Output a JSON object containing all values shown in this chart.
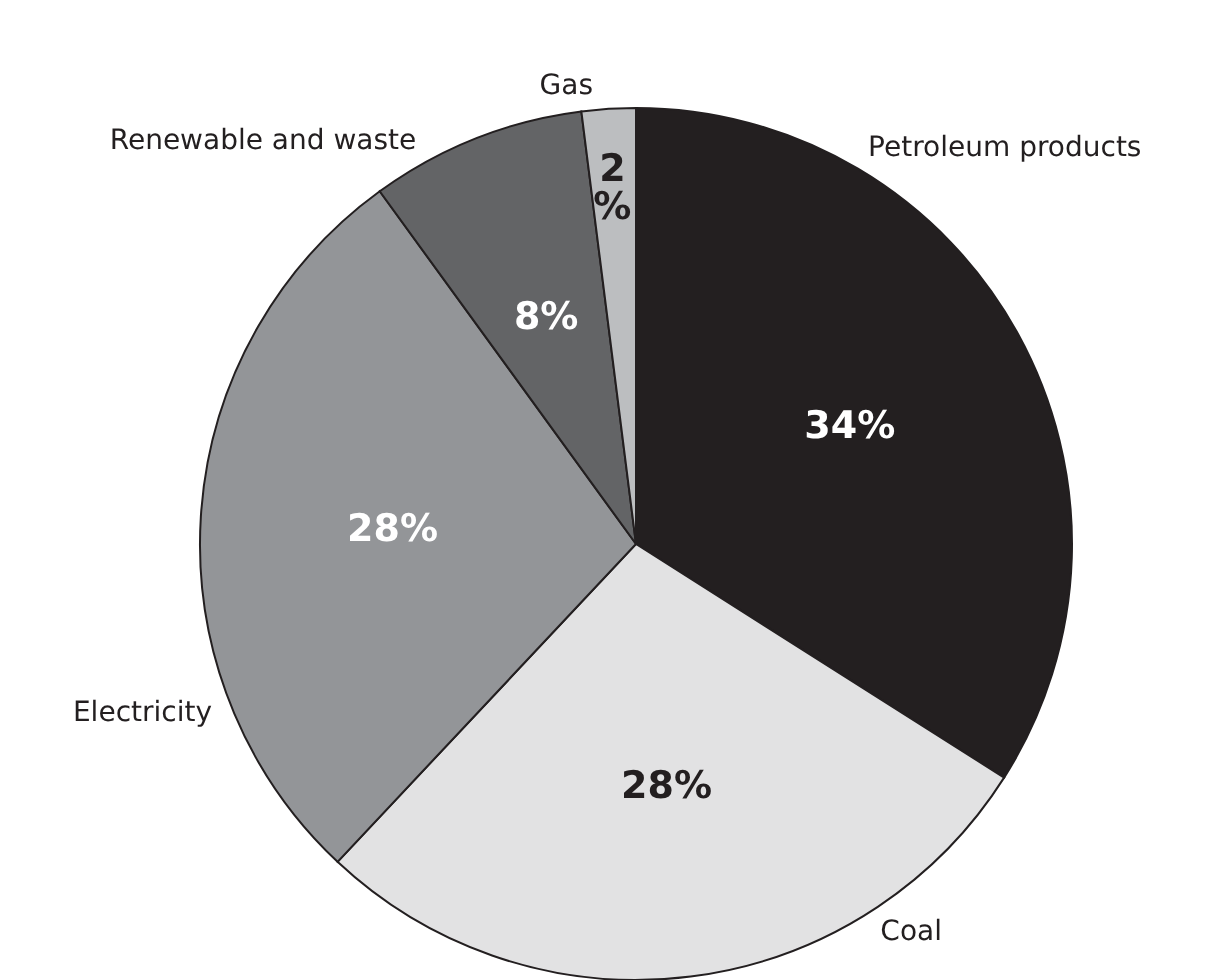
{
  "chart_data": {
    "type": "pie",
    "categories": [
      "Petroleum products",
      "Coal",
      "Electricity",
      "Renewable and waste",
      "Gas"
    ],
    "values": [
      34,
      28,
      28,
      8,
      2
    ],
    "colors": [
      "#231f20",
      "#e2e2e3",
      "#939598",
      "#636466",
      "#bcbec0"
    ],
    "value_labels": [
      "34%",
      "28%",
      "28%",
      "8%",
      "2%"
    ]
  }
}
